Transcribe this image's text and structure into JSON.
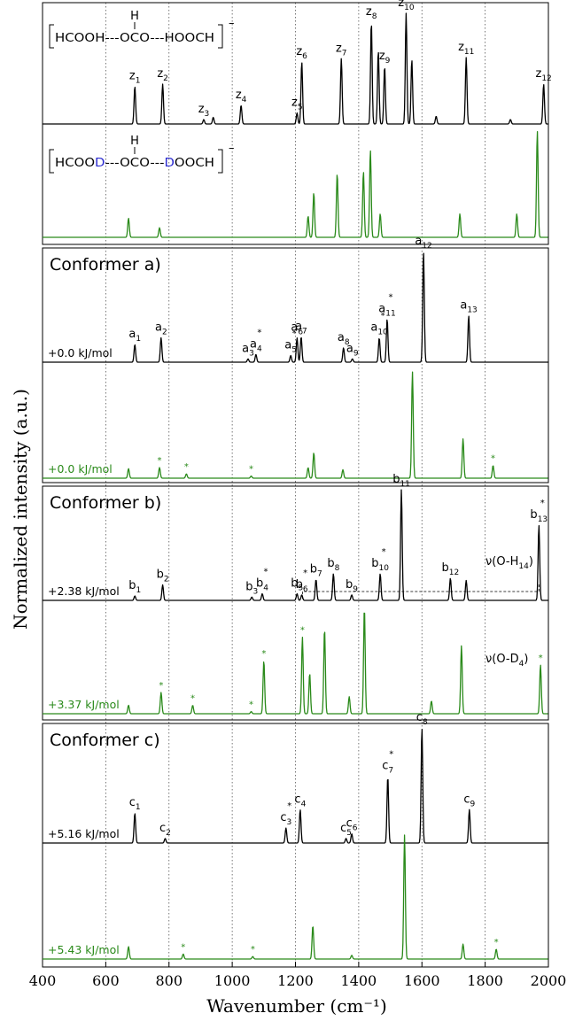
{
  "chart_data": {
    "type": "line",
    "xlabel": "Wavenumber (cm⁻¹)",
    "ylabel": "Normalized intensity (a.u.)",
    "xlim": [
      400,
      2000
    ],
    "xticks": [
      "400",
      "600",
      "800",
      "1000",
      "1200",
      "1400",
      "1600",
      "1800",
      "2000"
    ],
    "gridlines_x": [
      600,
      800,
      1000,
      1200,
      1400,
      1600,
      1800
    ],
    "colors": {
      "experimental_H": "#000000",
      "experimental_D": "#2a8a1a",
      "deuterium_label": "#2b2bd0"
    },
    "panels": [
      {
        "id": "experiment",
        "molecules": [
          {
            "text": "HCOOH---OCO---HOOCH",
            "top_atom": "H",
            "charge": "–"
          },
          {
            "parts": [
              "HCOO",
              "D",
              "---OCO---",
              "D",
              "OOCH"
            ],
            "top_atom": "H",
            "charge": "–"
          }
        ],
        "series": [
          {
            "name": "H",
            "peaks": [
              {
                "x": 692,
                "h": 0.34,
                "label": "z",
                "sub": "1"
              },
              {
                "x": 780,
                "h": 0.36,
                "label": "z",
                "sub": "2"
              },
              {
                "x": 910,
                "h": 0.04,
                "label": "z",
                "sub": "3"
              },
              {
                "x": 940,
                "h": 0.06
              },
              {
                "x": 1028,
                "h": 0.17,
                "label": "z",
                "sub": "4"
              },
              {
                "x": 1205,
                "h": 0.1,
                "label": "z",
                "sub": "5"
              },
              {
                "x": 1220,
                "h": 0.56,
                "label": "z",
                "sub": "6"
              },
              {
                "x": 1345,
                "h": 0.59,
                "label": "z",
                "sub": "7"
              },
              {
                "x": 1440,
                "h": 0.92,
                "label": "z",
                "sub": "8"
              },
              {
                "x": 1462,
                "h": 0.66
              },
              {
                "x": 1482,
                "h": 0.52,
                "label": "z",
                "sub": "9"
              },
              {
                "x": 1550,
                "h": 1.0,
                "label": "z",
                "sub": "10"
              },
              {
                "x": 1568,
                "h": 0.58
              },
              {
                "x": 1645,
                "h": 0.07
              },
              {
                "x": 1740,
                "h": 0.6,
                "label": "z",
                "sub": "11"
              },
              {
                "x": 1880,
                "h": 0.04
              },
              {
                "x": 1985,
                "h": 0.36,
                "label": "z",
                "sub": "12"
              }
            ]
          },
          {
            "name": "D",
            "peaks": [
              {
                "x": 672,
                "h": 0.18
              },
              {
                "x": 770,
                "h": 0.09
              },
              {
                "x": 1240,
                "h": 0.2
              },
              {
                "x": 1258,
                "h": 0.42
              },
              {
                "x": 1332,
                "h": 0.6
              },
              {
                "x": 1415,
                "h": 0.62
              },
              {
                "x": 1437,
                "h": 0.82
              },
              {
                "x": 1468,
                "h": 0.22
              },
              {
                "x": 1720,
                "h": 0.22
              },
              {
                "x": 1900,
                "h": 0.22
              },
              {
                "x": 1965,
                "h": 1.0
              }
            ]
          }
        ]
      },
      {
        "id": "conformer_a",
        "title": "Conformer a)",
        "energies": [
          "+0.0 kJ/mol",
          "+0.0 kJ/mol"
        ],
        "series": [
          {
            "name": "H",
            "peaks": [
              {
                "x": 692,
                "h": 0.16,
                "label": "a",
                "sub": "1"
              },
              {
                "x": 775,
                "h": 0.22,
                "label": "a",
                "sub": "2"
              },
              {
                "x": 1050,
                "h": 0.03,
                "label": "a",
                "sub": "3"
              },
              {
                "x": 1075,
                "h": 0.07,
                "label": "a",
                "sub": "4",
                "star": true
              },
              {
                "x": 1185,
                "h": 0.06,
                "label": "a",
                "sub": "5",
                "star": true
              },
              {
                "x": 1205,
                "h": 0.22,
                "label": "a",
                "sub": "6"
              },
              {
                "x": 1218,
                "h": 0.23,
                "label": "a",
                "sub": "7"
              },
              {
                "x": 1352,
                "h": 0.13,
                "label": "a",
                "sub": "8"
              },
              {
                "x": 1380,
                "h": 0.03,
                "label": "a",
                "sub": "9"
              },
              {
                "x": 1465,
                "h": 0.22,
                "label": "a",
                "sub": "10",
                "star": true
              },
              {
                "x": 1490,
                "h": 0.39,
                "label": "a",
                "sub": "11",
                "star": true
              },
              {
                "x": 1605,
                "h": 1.0,
                "label": "a",
                "sub": "12"
              },
              {
                "x": 1748,
                "h": 0.42,
                "label": "a",
                "sub": "13"
              }
            ]
          },
          {
            "name": "D",
            "peaks": [
              {
                "x": 672,
                "h": 0.09
              },
              {
                "x": 770,
                "h": 0.1,
                "star": true
              },
              {
                "x": 855,
                "h": 0.04,
                "star": true
              },
              {
                "x": 1060,
                "h": 0.02,
                "star": true
              },
              {
                "x": 1240,
                "h": 0.1
              },
              {
                "x": 1258,
                "h": 0.24
              },
              {
                "x": 1350,
                "h": 0.08
              },
              {
                "x": 1570,
                "h": 1.0
              },
              {
                "x": 1730,
                "h": 0.37
              },
              {
                "x": 1825,
                "h": 0.12,
                "star": true
              }
            ]
          }
        ]
      },
      {
        "id": "conformer_b",
        "title": "Conformer b)",
        "energies": [
          "+2.38 kJ/mol",
          "+3.37 kJ/mol"
        ],
        "annotations": [
          "ν(O-H",
          "14",
          ")",
          "ν(O-D",
          "4",
          ")"
        ],
        "series": [
          {
            "name": "H",
            "peaks": [
              {
                "x": 692,
                "h": 0.04,
                "label": "b",
                "sub": "1"
              },
              {
                "x": 780,
                "h": 0.14,
                "label": "b",
                "sub": "2"
              },
              {
                "x": 1062,
                "h": 0.03,
                "label": "b",
                "sub": "3"
              },
              {
                "x": 1095,
                "h": 0.06,
                "label": "b",
                "sub": "4",
                "star": true
              },
              {
                "x": 1205,
                "h": 0.06,
                "label": "b",
                "sub": "5"
              },
              {
                "x": 1220,
                "h": 0.05,
                "label": "b",
                "sub": "6",
                "star": true
              },
              {
                "x": 1265,
                "h": 0.19,
                "label": "b",
                "sub": "7"
              },
              {
                "x": 1320,
                "h": 0.24,
                "label": "b",
                "sub": "8"
              },
              {
                "x": 1378,
                "h": 0.05,
                "label": "b",
                "sub": "9"
              },
              {
                "x": 1468,
                "h": 0.24,
                "label": "b",
                "sub": "10",
                "star": true
              },
              {
                "x": 1535,
                "h": 1.0,
                "label": "b",
                "sub": "11"
              },
              {
                "x": 1690,
                "h": 0.2,
                "label": "b",
                "sub": "12"
              },
              {
                "x": 1740,
                "h": 0.18
              },
              {
                "x": 1970,
                "h": 0.68,
                "label": "b",
                "sub": "13",
                "star": true
              }
            ]
          },
          {
            "name": "D",
            "peaks": [
              {
                "x": 672,
                "h": 0.08
              },
              {
                "x": 775,
                "h": 0.2,
                "star": true
              },
              {
                "x": 875,
                "h": 0.08,
                "star": true
              },
              {
                "x": 1060,
                "h": 0.02,
                "star": true
              },
              {
                "x": 1100,
                "h": 0.5,
                "star": true
              },
              {
                "x": 1222,
                "h": 0.72,
                "star": true
              },
              {
                "x": 1245,
                "h": 0.38
              },
              {
                "x": 1292,
                "h": 0.8
              },
              {
                "x": 1370,
                "h": 0.16
              },
              {
                "x": 1418,
                "h": 1.0
              },
              {
                "x": 1630,
                "h": 0.12
              },
              {
                "x": 1725,
                "h": 0.64
              },
              {
                "x": 1975,
                "h": 0.46,
                "star": true
              }
            ]
          }
        ]
      },
      {
        "id": "conformer_c",
        "title": "Conformer c)",
        "energies": [
          "+5.16 kJ/mol",
          "+5.43 kJ/mol"
        ],
        "series": [
          {
            "name": "H",
            "peaks": [
              {
                "x": 692,
                "h": 0.26,
                "label": "c",
                "sub": "1"
              },
              {
                "x": 788,
                "h": 0.04,
                "label": "c",
                "sub": "2"
              },
              {
                "x": 1170,
                "h": 0.13,
                "label": "c",
                "sub": "3",
                "star": true
              },
              {
                "x": 1215,
                "h": 0.29,
                "label": "c",
                "sub": "4"
              },
              {
                "x": 1360,
                "h": 0.04,
                "label": "c",
                "sub": "5"
              },
              {
                "x": 1378,
                "h": 0.08,
                "label": "c",
                "sub": "6"
              },
              {
                "x": 1492,
                "h": 0.58,
                "label": "c",
                "sub": "7",
                "star": true
              },
              {
                "x": 1600,
                "h": 1.0,
                "label": "c",
                "sub": "8"
              },
              {
                "x": 1750,
                "h": 0.29,
                "label": "c",
                "sub": "9"
              }
            ]
          },
          {
            "name": "D",
            "peaks": [
              {
                "x": 672,
                "h": 0.1
              },
              {
                "x": 845,
                "h": 0.04,
                "star": true
              },
              {
                "x": 1065,
                "h": 0.02,
                "star": true
              },
              {
                "x": 1255,
                "h": 0.27
              },
              {
                "x": 1378,
                "h": 0.03
              },
              {
                "x": 1545,
                "h": 1.0
              },
              {
                "x": 1730,
                "h": 0.12
              },
              {
                "x": 1835,
                "h": 0.08,
                "star": true
              }
            ]
          }
        ]
      }
    ]
  }
}
